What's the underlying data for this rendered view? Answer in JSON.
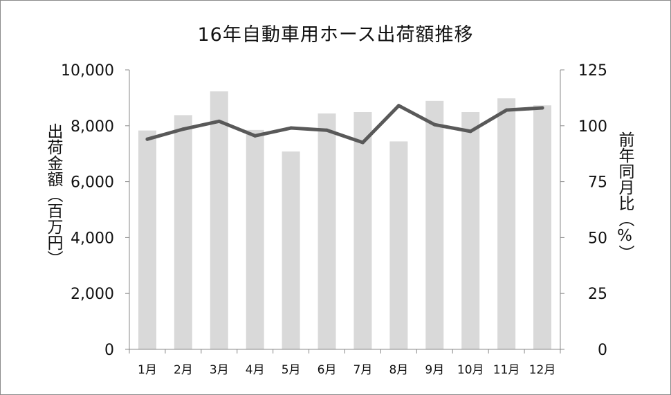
{
  "chart_data": {
    "type": "bar",
    "title": "16年自動車用ホース出荷額推移",
    "categories": [
      "1月",
      "2月",
      "3月",
      "4月",
      "5月",
      "6月",
      "7月",
      "8月",
      "9月",
      "10月",
      "11月",
      "12月"
    ],
    "series": [
      {
        "axis": "left",
        "type": "bar",
        "color": "#d9d9d9",
        "values": [
          7830,
          8380,
          9230,
          7850,
          7080,
          8440,
          8490,
          7440,
          8890,
          8490,
          8980,
          8730
        ]
      },
      {
        "axis": "right",
        "type": "line",
        "color": "#595959",
        "values": [
          94,
          98.5,
          102,
          95.5,
          99,
          98,
          92.5,
          109,
          100.5,
          97.5,
          107,
          108
        ]
      }
    ],
    "ylabel": "出荷金額（百万円）",
    "y2label": "前年同月比（%）",
    "ylim": [
      0,
      10000
    ],
    "y2lim": [
      0,
      125
    ],
    "yticks": [
      "0",
      "2,000",
      "4,000",
      "6,000",
      "8,000",
      "10,000"
    ],
    "y2ticks": [
      "0",
      "25",
      "50",
      "75",
      "100",
      "125"
    ],
    "grid": false,
    "legend": "none"
  }
}
